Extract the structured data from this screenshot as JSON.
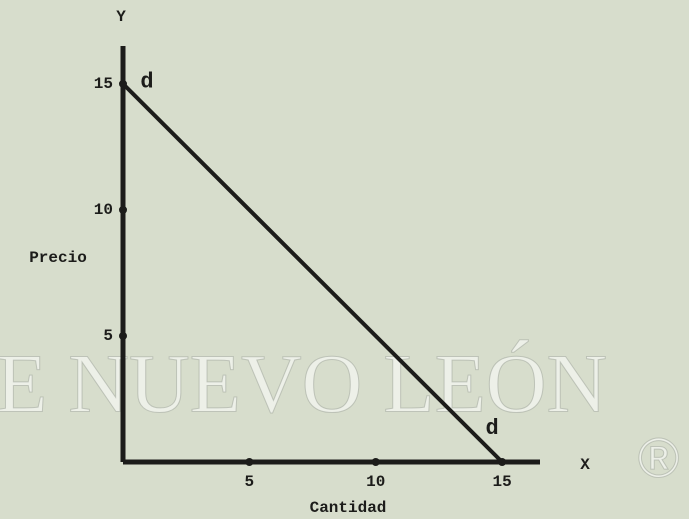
{
  "chart_data": {
    "type": "line",
    "x": [
      0,
      15
    ],
    "series": [
      {
        "name": "d",
        "color": "#1c1c1a",
        "values": [
          15,
          0
        ]
      }
    ],
    "point_labels": [
      "d",
      "d"
    ],
    "xlabel": "Cantidad",
    "ylabel": "Precio",
    "x_axis_name": "X",
    "y_axis_name": "Y",
    "xlim": [
      0,
      16.5
    ],
    "ylim": [
      0,
      16.5
    ],
    "xticks": [
      5,
      10,
      15
    ],
    "yticks": [
      5,
      10,
      15
    ],
    "watermark": "E NUEVO LEÓN",
    "watermark_mark": "®"
  }
}
